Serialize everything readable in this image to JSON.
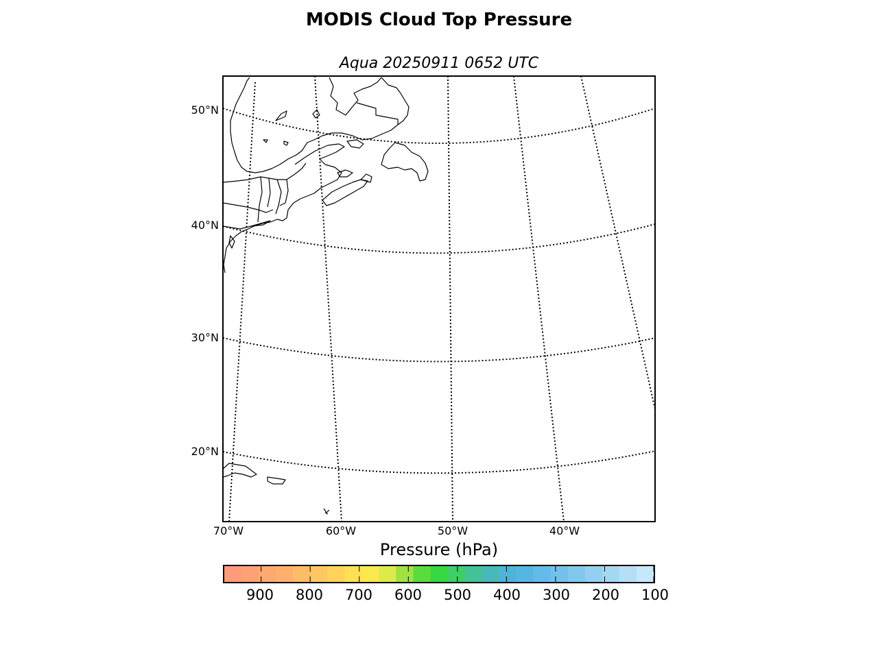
{
  "title": "MODIS Cloud Top Pressure",
  "subtitle": "Aqua 20250911 0652 UTC",
  "map": {
    "projection": "lambert-conformal-style",
    "extent": {
      "lon_min": -70.5,
      "lon_max": -32,
      "lat_min": 14,
      "lat_max": 53
    },
    "parallels": [
      20,
      30,
      40,
      50
    ],
    "parallel_labels": [
      "20°N",
      "30°N",
      "40°N",
      "50°N"
    ],
    "meridians": [
      -70,
      -60,
      -50,
      -40
    ],
    "meridian_labels": [
      "70°W",
      "60°W",
      "50°W",
      "40°W"
    ],
    "gridline_style": "dotted",
    "coastline_color": "#000000",
    "data_fill": "none visible"
  },
  "colorbar": {
    "title": "Pressure (hPa)",
    "orientation": "horizontal",
    "range": [
      975,
      100
    ],
    "ticks": [
      900,
      800,
      700,
      600,
      500,
      400,
      300,
      200,
      100
    ],
    "tick_labels": [
      "900",
      "800",
      "700",
      "600",
      "500",
      "400",
      "300",
      "200",
      "100"
    ],
    "colors": [
      "#ff9a7a",
      "#ffa075",
      "#ffa870",
      "#ffb16c",
      "#ffbc66",
      "#ffc75f",
      "#ffd359",
      "#ffe053",
      "#fbe84c",
      "#ddea4b",
      "#a0e23f",
      "#5bdc3d",
      "#35d841",
      "#3ccf67",
      "#42c397",
      "#48b8b9",
      "#4db4d8",
      "#55b6e3",
      "#62bbe8",
      "#72c1ea",
      "#82c8ed",
      "#92cff0",
      "#a4d7f3",
      "#b4dff6",
      "#c6e8fa"
    ]
  }
}
